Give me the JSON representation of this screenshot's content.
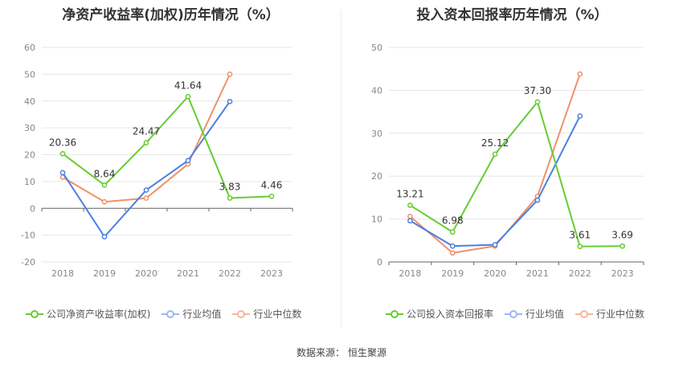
{
  "footer": {
    "source_label": "数据来源：",
    "source_value": "恒生聚源"
  },
  "colors": {
    "company": "#66cc33",
    "industry_avg": "#4b7fe0",
    "industry_median": "#f0906a"
  },
  "chart_data": [
    {
      "type": "line",
      "title": "净资产收益率(加权)历年情况（%）",
      "categories": [
        "2018",
        "2019",
        "2020",
        "2021",
        "2022",
        "2023"
      ],
      "ylim": [
        -20,
        60
      ],
      "yticks": [
        -20,
        -10,
        0,
        10,
        20,
        30,
        40,
        50,
        60
      ],
      "grid": true,
      "legend_position": "bottom",
      "series": [
        {
          "name": "公司净资产收益率(加权)",
          "color": "#66cc33",
          "values": [
            20.36,
            8.64,
            24.47,
            41.64,
            3.83,
            4.46
          ],
          "labels": [
            "20.36",
            "8.64",
            "24.47",
            "41.64",
            "3.83",
            "4.46"
          ]
        },
        {
          "name": "行业均值",
          "color": "#4b7fe0",
          "values": [
            13.3,
            -10.6,
            6.8,
            17.8,
            39.8,
            null
          ]
        },
        {
          "name": "行业中位数",
          "color": "#f0906a",
          "values": [
            11.6,
            2.4,
            3.8,
            16.5,
            50.0,
            null
          ]
        }
      ]
    },
    {
      "type": "line",
      "title": "投入资本回报率历年情况（%）",
      "categories": [
        "2018",
        "2019",
        "2020",
        "2021",
        "2022",
        "2023"
      ],
      "ylim": [
        0,
        50
      ],
      "yticks": [
        0,
        10,
        20,
        30,
        40,
        50
      ],
      "grid": true,
      "legend_position": "bottom",
      "series": [
        {
          "name": "公司投入资本回报率",
          "color": "#66cc33",
          "values": [
            13.21,
            6.98,
            25.12,
            37.3,
            3.61,
            3.69
          ],
          "labels": [
            "13.21",
            "6.98",
            "25.12",
            "37.30",
            "3.61",
            "3.69"
          ]
        },
        {
          "name": "行业均值",
          "color": "#4b7fe0",
          "values": [
            9.6,
            3.7,
            4.0,
            14.4,
            34.0,
            null
          ]
        },
        {
          "name": "行业中位数",
          "color": "#f0906a",
          "values": [
            10.6,
            2.1,
            3.7,
            15.3,
            43.8,
            null
          ]
        }
      ]
    }
  ]
}
